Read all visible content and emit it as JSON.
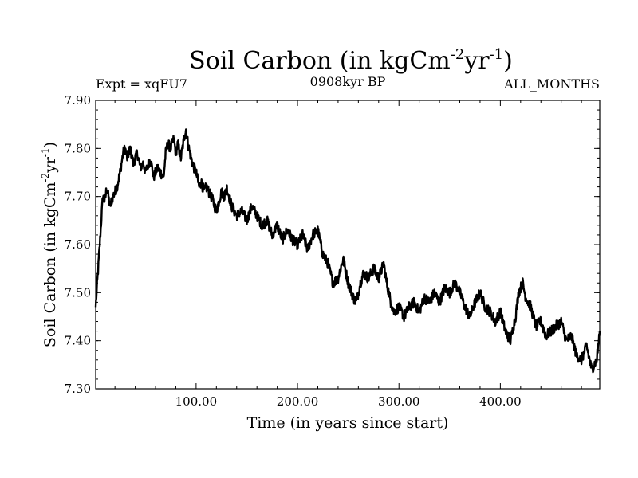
{
  "chart_data": {
    "type": "line",
    "title_main": "Soil Carbon (in kgCm",
    "title_sup1": "-2",
    "title_mid": "yr",
    "title_sup2": "-1",
    "title_end": ")",
    "subtitle_left": "Expt = xqFU7",
    "subtitle_center": "0908kyr BP",
    "subtitle_right": "ALL_MONTHS",
    "xlabel": "Time (in years since start)",
    "ylabel_main": "Soil Carbon (in kgCm",
    "ylabel_sup1": "-2",
    "ylabel_mid": "yr",
    "ylabel_sup2": "-1",
    "ylabel_end": ")",
    "xlim": [
      1,
      498
    ],
    "ylim": [
      7.3,
      7.9
    ],
    "x_ticks": [
      100,
      200,
      300,
      400
    ],
    "x_tick_labels": [
      "100.00",
      "200.00",
      "300.00",
      "400.00"
    ],
    "y_ticks": [
      7.3,
      7.4,
      7.5,
      7.6,
      7.7,
      7.8,
      7.9
    ],
    "y_tick_labels": [
      "7.30",
      "7.40",
      "7.50",
      "7.60",
      "7.70",
      "7.80",
      "7.90"
    ],
    "series": [
      {
        "name": "Soil Carbon",
        "x": [
          1,
          5,
          8,
          10,
          12,
          15,
          18,
          22,
          25,
          28,
          30,
          32,
          35,
          38,
          42,
          45,
          48,
          50,
          55,
          58,
          62,
          65,
          68,
          70,
          72,
          75,
          78,
          80,
          82,
          85,
          88,
          90,
          92,
          95,
          98,
          100,
          103,
          105,
          108,
          110,
          115,
          120,
          125,
          128,
          130,
          135,
          140,
          145,
          150,
          155,
          160,
          165,
          170,
          175,
          180,
          185,
          190,
          195,
          200,
          205,
          210,
          215,
          220,
          225,
          230,
          235,
          240,
          245,
          250,
          255,
          258,
          262,
          265,
          270,
          275,
          280,
          285,
          288,
          292,
          295,
          300,
          305,
          310,
          315,
          320,
          325,
          330,
          335,
          340,
          345,
          350,
          355,
          358,
          362,
          365,
          370,
          375,
          380,
          385,
          390,
          395,
          400,
          405,
          410,
          415,
          418,
          422,
          425,
          430,
          435,
          440,
          445,
          450,
          455,
          460,
          465,
          470,
          475,
          480,
          485,
          490,
          495,
          498
        ],
        "values": [
          7.47,
          7.6,
          7.7,
          7.69,
          7.72,
          7.68,
          7.7,
          7.72,
          7.75,
          7.79,
          7.8,
          7.78,
          7.8,
          7.77,
          7.79,
          7.76,
          7.77,
          7.75,
          7.78,
          7.74,
          7.76,
          7.75,
          7.74,
          7.79,
          7.81,
          7.8,
          7.82,
          7.79,
          7.81,
          7.78,
          7.82,
          7.84,
          7.81,
          7.78,
          7.76,
          7.75,
          7.72,
          7.73,
          7.71,
          7.72,
          7.7,
          7.67,
          7.71,
          7.7,
          7.72,
          7.68,
          7.66,
          7.67,
          7.65,
          7.68,
          7.66,
          7.64,
          7.65,
          7.62,
          7.64,
          7.61,
          7.63,
          7.61,
          7.6,
          7.62,
          7.59,
          7.62,
          7.63,
          7.58,
          7.56,
          7.52,
          7.53,
          7.57,
          7.52,
          7.49,
          7.48,
          7.52,
          7.54,
          7.53,
          7.55,
          7.53,
          7.56,
          7.52,
          7.48,
          7.46,
          7.47,
          7.45,
          7.47,
          7.48,
          7.46,
          7.49,
          7.48,
          7.5,
          7.48,
          7.51,
          7.5,
          7.52,
          7.51,
          7.49,
          7.47,
          7.45,
          7.48,
          7.5,
          7.47,
          7.46,
          7.44,
          7.46,
          7.42,
          7.4,
          7.45,
          7.5,
          7.52,
          7.49,
          7.47,
          7.43,
          7.44,
          7.41,
          7.42,
          7.43,
          7.44,
          7.4,
          7.41,
          7.37,
          7.36,
          7.39,
          7.34,
          7.36,
          7.42
        ]
      }
    ]
  }
}
